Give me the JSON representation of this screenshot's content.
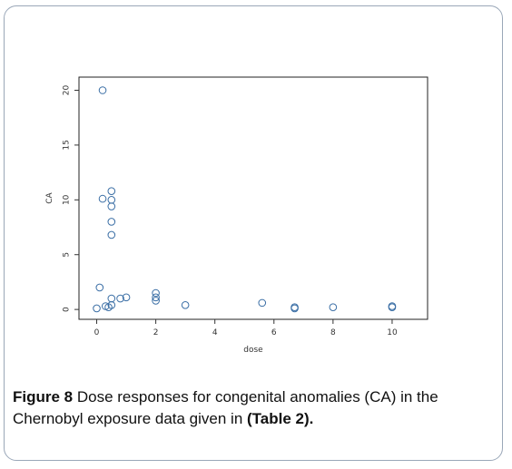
{
  "caption": {
    "label": "Figure 8",
    "text": " Dose responses for congenital anomalies (CA) in the Chernobyl exposure data given in ",
    "ref": "(Table 2).",
    "trail": ""
  },
  "chart_data": {
    "type": "scatter",
    "xlabel": "dose",
    "ylabel": "CA",
    "xlim": [
      -0.6,
      11.2
    ],
    "ylim": [
      -0.9,
      21.2
    ],
    "xticks": [
      0,
      2,
      4,
      6,
      8,
      10
    ],
    "yticks": [
      0,
      5,
      10,
      15,
      20
    ],
    "marker": "open-circle",
    "marker_color": "#3a6ea5",
    "points": [
      [
        0.2,
        20.0
      ],
      [
        0.5,
        10.8
      ],
      [
        0.2,
        10.1
      ],
      [
        0.5,
        10.0
      ],
      [
        0.5,
        9.4
      ],
      [
        0.5,
        8.0
      ],
      [
        0.5,
        6.8
      ],
      [
        0.1,
        2.0
      ],
      [
        0.0,
        0.1
      ],
      [
        0.3,
        0.3
      ],
      [
        0.4,
        0.2
      ],
      [
        0.5,
        0.4
      ],
      [
        0.5,
        1.0
      ],
      [
        0.8,
        1.0
      ],
      [
        1.0,
        1.1
      ],
      [
        2.0,
        1.5
      ],
      [
        2.0,
        1.1
      ],
      [
        2.0,
        0.8
      ],
      [
        3.0,
        0.4
      ],
      [
        5.6,
        0.6
      ],
      [
        6.7,
        0.2
      ],
      [
        6.7,
        0.1
      ],
      [
        8.0,
        0.2
      ],
      [
        10.0,
        0.3
      ],
      [
        10.0,
        0.2
      ]
    ]
  }
}
